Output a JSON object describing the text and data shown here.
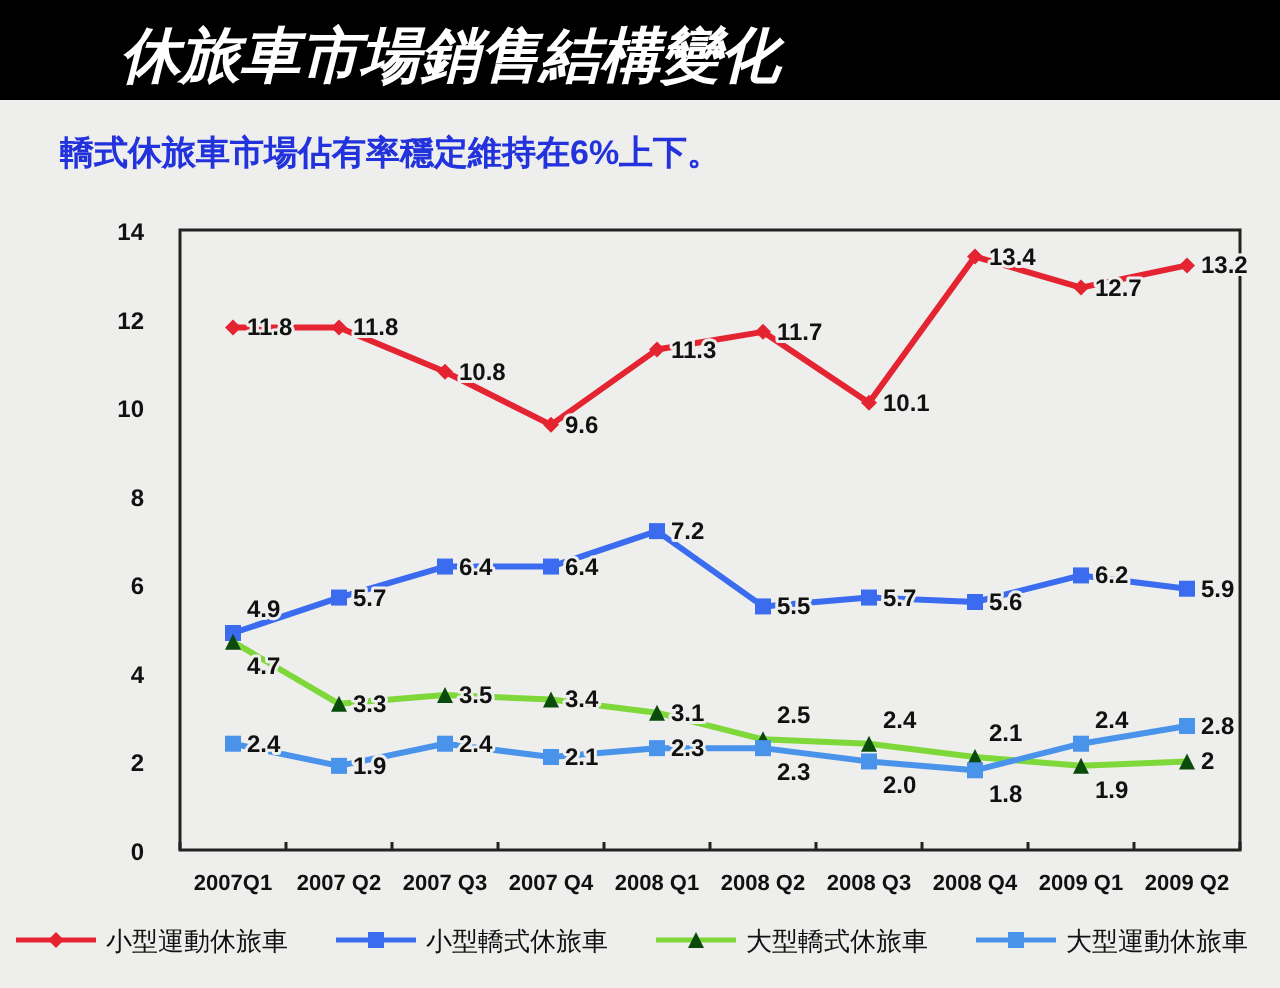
{
  "chart_data": {
    "type": "line",
    "title": "休旅車市場銷售結構變化",
    "subtitle": "轎式休旅車市場佔有率穩定維持在6%上下。",
    "categories": [
      "2007Q1",
      "2007 Q2",
      "2007 Q3",
      "2007 Q4",
      "2008 Q1",
      "2008 Q2",
      "2008 Q3",
      "2008 Q4",
      "2009 Q1",
      "2009 Q2"
    ],
    "series": [
      {
        "name": "小型運動休旅車",
        "color": "#e42431",
        "marker": "diamond",
        "values": [
          11.8,
          11.8,
          10.8,
          9.6,
          11.3,
          11.7,
          10.1,
          13.4,
          12.7,
          13.2
        ],
        "value_labels": [
          "11.8",
          "11.8",
          "10.8",
          "9.6",
          "11.3",
          "11.7",
          "10.1",
          "13.4",
          "12.7",
          "13.2"
        ]
      },
      {
        "name": "小型轎式休旅車",
        "color": "#3b6cf0",
        "marker": "square",
        "values": [
          4.9,
          5.7,
          6.4,
          6.4,
          7.2,
          5.5,
          5.7,
          5.6,
          6.2,
          5.9
        ],
        "value_labels": [
          "4.9",
          "5.7",
          "6.4",
          "6.4",
          "7.2",
          "5.5",
          "5.7",
          "5.6",
          "6.2",
          "5.9"
        ]
      },
      {
        "name": "大型轎式休旅車",
        "color": "#7fd83a",
        "marker": "triangle",
        "values": [
          4.7,
          3.3,
          3.5,
          3.4,
          3.1,
          2.5,
          2.4,
          2.1,
          1.9,
          2
        ],
        "value_labels": [
          "4.7",
          "3.3",
          "3.5",
          "3.4",
          "3.1",
          "2.5",
          "2.4",
          "2.1",
          "1.9",
          "2"
        ]
      },
      {
        "name": "大型運動休旅車",
        "color": "#4a93ea",
        "marker": "square",
        "values": [
          2.4,
          1.9,
          2.4,
          2.1,
          2.3,
          2.3,
          2.0,
          1.8,
          2.4,
          2.8
        ],
        "value_labels": [
          "2.4",
          "1.9",
          "2.4",
          "2.1",
          "2.3",
          "2.3",
          "2.0",
          "1.8",
          "2.4",
          "2.8"
        ]
      }
    ],
    "ylim": [
      0,
      14
    ],
    "yticks": [
      0,
      2,
      4,
      6,
      8,
      10,
      12,
      14
    ],
    "legend": "bottom"
  }
}
